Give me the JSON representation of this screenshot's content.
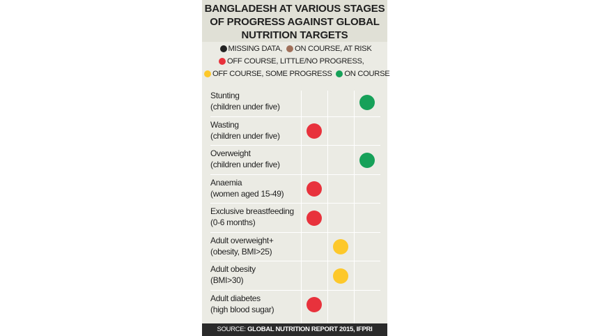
{
  "title": {
    "line1": "BANGLADESH AT VARIOUS STAGES",
    "line2": "OF PROGRESS AGAINST GLOBAL",
    "line3": "NUTRITION TARGETS"
  },
  "legend": {
    "missing": "MISSING DATA,",
    "at_risk": "ON COURSE, AT RISK",
    "off_little": "OFF COURSE, LITTLE/NO PROGRESS,",
    "off_some": "OFF COURSE, SOME PROGRESS",
    "on_course": "ON COURSE"
  },
  "colors": {
    "missing": "#222222",
    "at_risk": "#a0705a",
    "off_little": "#e8323c",
    "off_some": "#fdc82a",
    "on_course": "#16a159"
  },
  "footer": {
    "prefix": "SOURCE:",
    "source": "GLOBAL NUTRITION REPORT 2015, IFPRI"
  },
  "chart_data": {
    "type": "table",
    "columns": [
      "off_little",
      "off_some",
      "on_course"
    ],
    "rows": [
      {
        "line1": "Stunting",
        "line2": "(children under five)",
        "status": "on_course"
      },
      {
        "line1": "Wasting",
        "line2": "(children under five)",
        "status": "off_little"
      },
      {
        "line1": "Overweight",
        "line2": "(children under five)",
        "status": "on_course"
      },
      {
        "line1": "Anaemia",
        "line2": "(women aged 15-49)",
        "status": "off_little"
      },
      {
        "line1": "Exclusive breastfeeding",
        "line2": "(0-6 months)",
        "status": "off_little"
      },
      {
        "line1": "Adult overweight+",
        "line2": "(obesity, BMI>25)",
        "status": "off_some"
      },
      {
        "line1": "Adult obesity",
        "line2": "(BMI>30)",
        "status": "off_some"
      },
      {
        "line1": "Adult diabetes",
        "line2": "(high blood sugar)",
        "status": "off_little"
      }
    ]
  }
}
